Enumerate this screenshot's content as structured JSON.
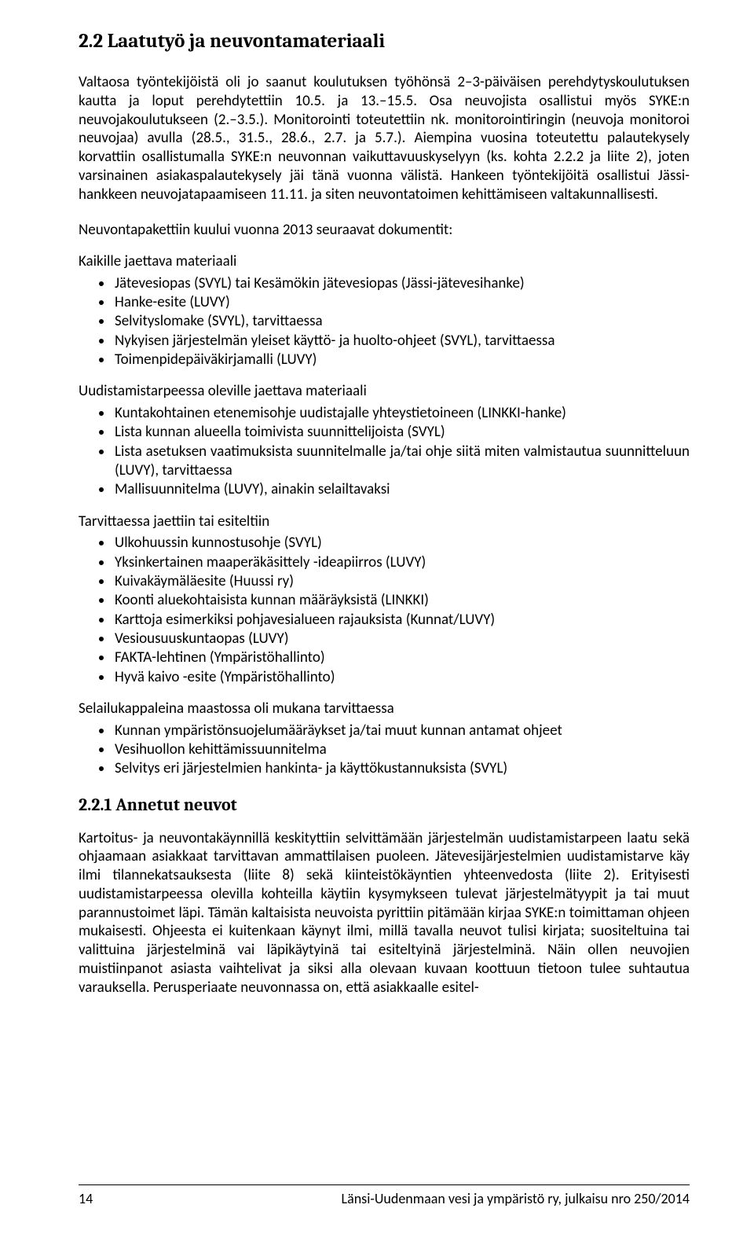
{
  "heading": "2.2  Laatutyö ja neuvontamateriaali",
  "para1": "Valtaosa työntekijöistä oli jo saanut koulutuksen työhönsä 2–3-päiväisen perehdytyskoulutuksen kautta ja loput perehdytettiin 10.5. ja 13.–15.5. Osa neuvojista osallistui myös SYKE:n neuvojakoulutukseen (2.–3.5.). Monitorointi toteutettiin nk. monitorointiringin (neuvoja monitoroi neuvojaa) avulla (28.5., 31.5., 28.6., 2.7. ja 5.7.). Aiempina vuosina toteutettu palautekysely korvattiin osallistumalla SYKE:n neuvonnan vaikuttavuuskyselyyn (ks. kohta 2.2.2 ja liite 2), joten varsinainen asiakaspalautekysely jäi tänä vuonna välistä. Hankeen työntekijöitä osallistui Jässi-hankkeen neuvojatapaamiseen 11.11. ja siten neuvontatoimen kehittämiseen valtakunnallisesti.",
  "para2": "Neuvontapakettiin kuului vuonna 2013 seuraavat dokumentit:",
  "sec1": {
    "title": "Kaikille jaettava materiaali",
    "items": [
      "Jätevesiopas (SVYL) tai Kesämökin jätevesiopas (Jässi-jätevesihanke)",
      "Hanke-esite (LUVY)",
      "Selvityslomake (SVYL), tarvittaessa",
      "Nykyisen järjestelmän yleiset käyttö- ja huolto-ohjeet (SVYL), tarvittaessa",
      "Toimenpidepäiväkirjamalli (LUVY)"
    ]
  },
  "sec2": {
    "title": "Uudistamistarpeessa oleville jaettava materiaali",
    "items": [
      "Kuntakohtainen etenemisohje uudistajalle yhteystietoineen (LINKKI-hanke)",
      "Lista kunnan alueella toimivista suunnittelijoista (SVYL)",
      "Lista asetuksen vaatimuksista suunnitelmalle ja/tai ohje siitä miten valmistautua suunnitteluun (LUVY), tarvittaessa",
      "Mallisuunnitelma (LUVY), ainakin selailtavaksi"
    ]
  },
  "sec3": {
    "title": "Tarvittaessa jaettiin tai esiteltiin",
    "items": [
      "Ulkohuussin kunnostusohje (SVYL)",
      "Yksinkertainen maaperäkäsittely -ideapiirros (LUVY)",
      "Kuivakäymäläesite (Huussi ry)",
      "Koonti aluekohtaisista kunnan määräyksistä (LINKKI)",
      "Karttoja esimerkiksi pohjavesialueen rajauksista (Kunnat/LUVY)",
      "Vesiousuuskuntaopas (LUVY)",
      "FAKTA-lehtinen (Ympäristöhallinto)",
      "Hyvä kaivo -esite (Ympäristöhallinto)"
    ]
  },
  "sec4": {
    "title": "Selailukappaleina maastossa oli mukana tarvittaessa",
    "items": [
      "Kunnan ympäristönsuojelumääräykset ja/tai muut kunnan antamat ohjeet",
      "Vesihuollon kehittämissuunnitelma",
      "Selvitys eri järjestelmien hankinta- ja käyttökustannuksista (SVYL)"
    ]
  },
  "subheading": "2.2.1  Annetut neuvot",
  "para3": "Kartoitus- ja neuvontakäynnillä keskityttiin selvittämään järjestelmän uudistamistarpeen laatu sekä ohjaamaan asiakkaat tarvittavan ammattilaisen puoleen. Jätevesijärjestelmien uudistamistarve käy ilmi tilannekatsauksesta (liite 8) sekä kiinteistökäyntien yhteenvedosta (liite 2). Erityisesti uudistamistarpeessa olevilla kohteilla käytiin kysymykseen tulevat järjestelmätyypit ja tai muut parannustoimet läpi. Tämän kaltaisista neuvoista pyrittiin pitämään kirjaa SYKE:n toimittaman ohjeen mukaisesti. Ohjeesta ei kuitenkaan käynyt ilmi, millä tavalla neuvot tulisi kirjata; suositeltuina tai valittuina järjestelminä vai läpikäytyinä tai esiteltyinä järjestelminä. Näin ollen neuvojien muistiinpanot asiasta vaihtelivat ja siksi alla olevaan kuvaan koottuun tietoon tulee suhtautua varauksella. Perusperiaate neuvonnassa on, että asiakkaalle esitel-",
  "footer": {
    "page": "14",
    "pub": "Länsi-Uudenmaan vesi ja ympäristö ry, julkaisu nro 250/2014"
  }
}
